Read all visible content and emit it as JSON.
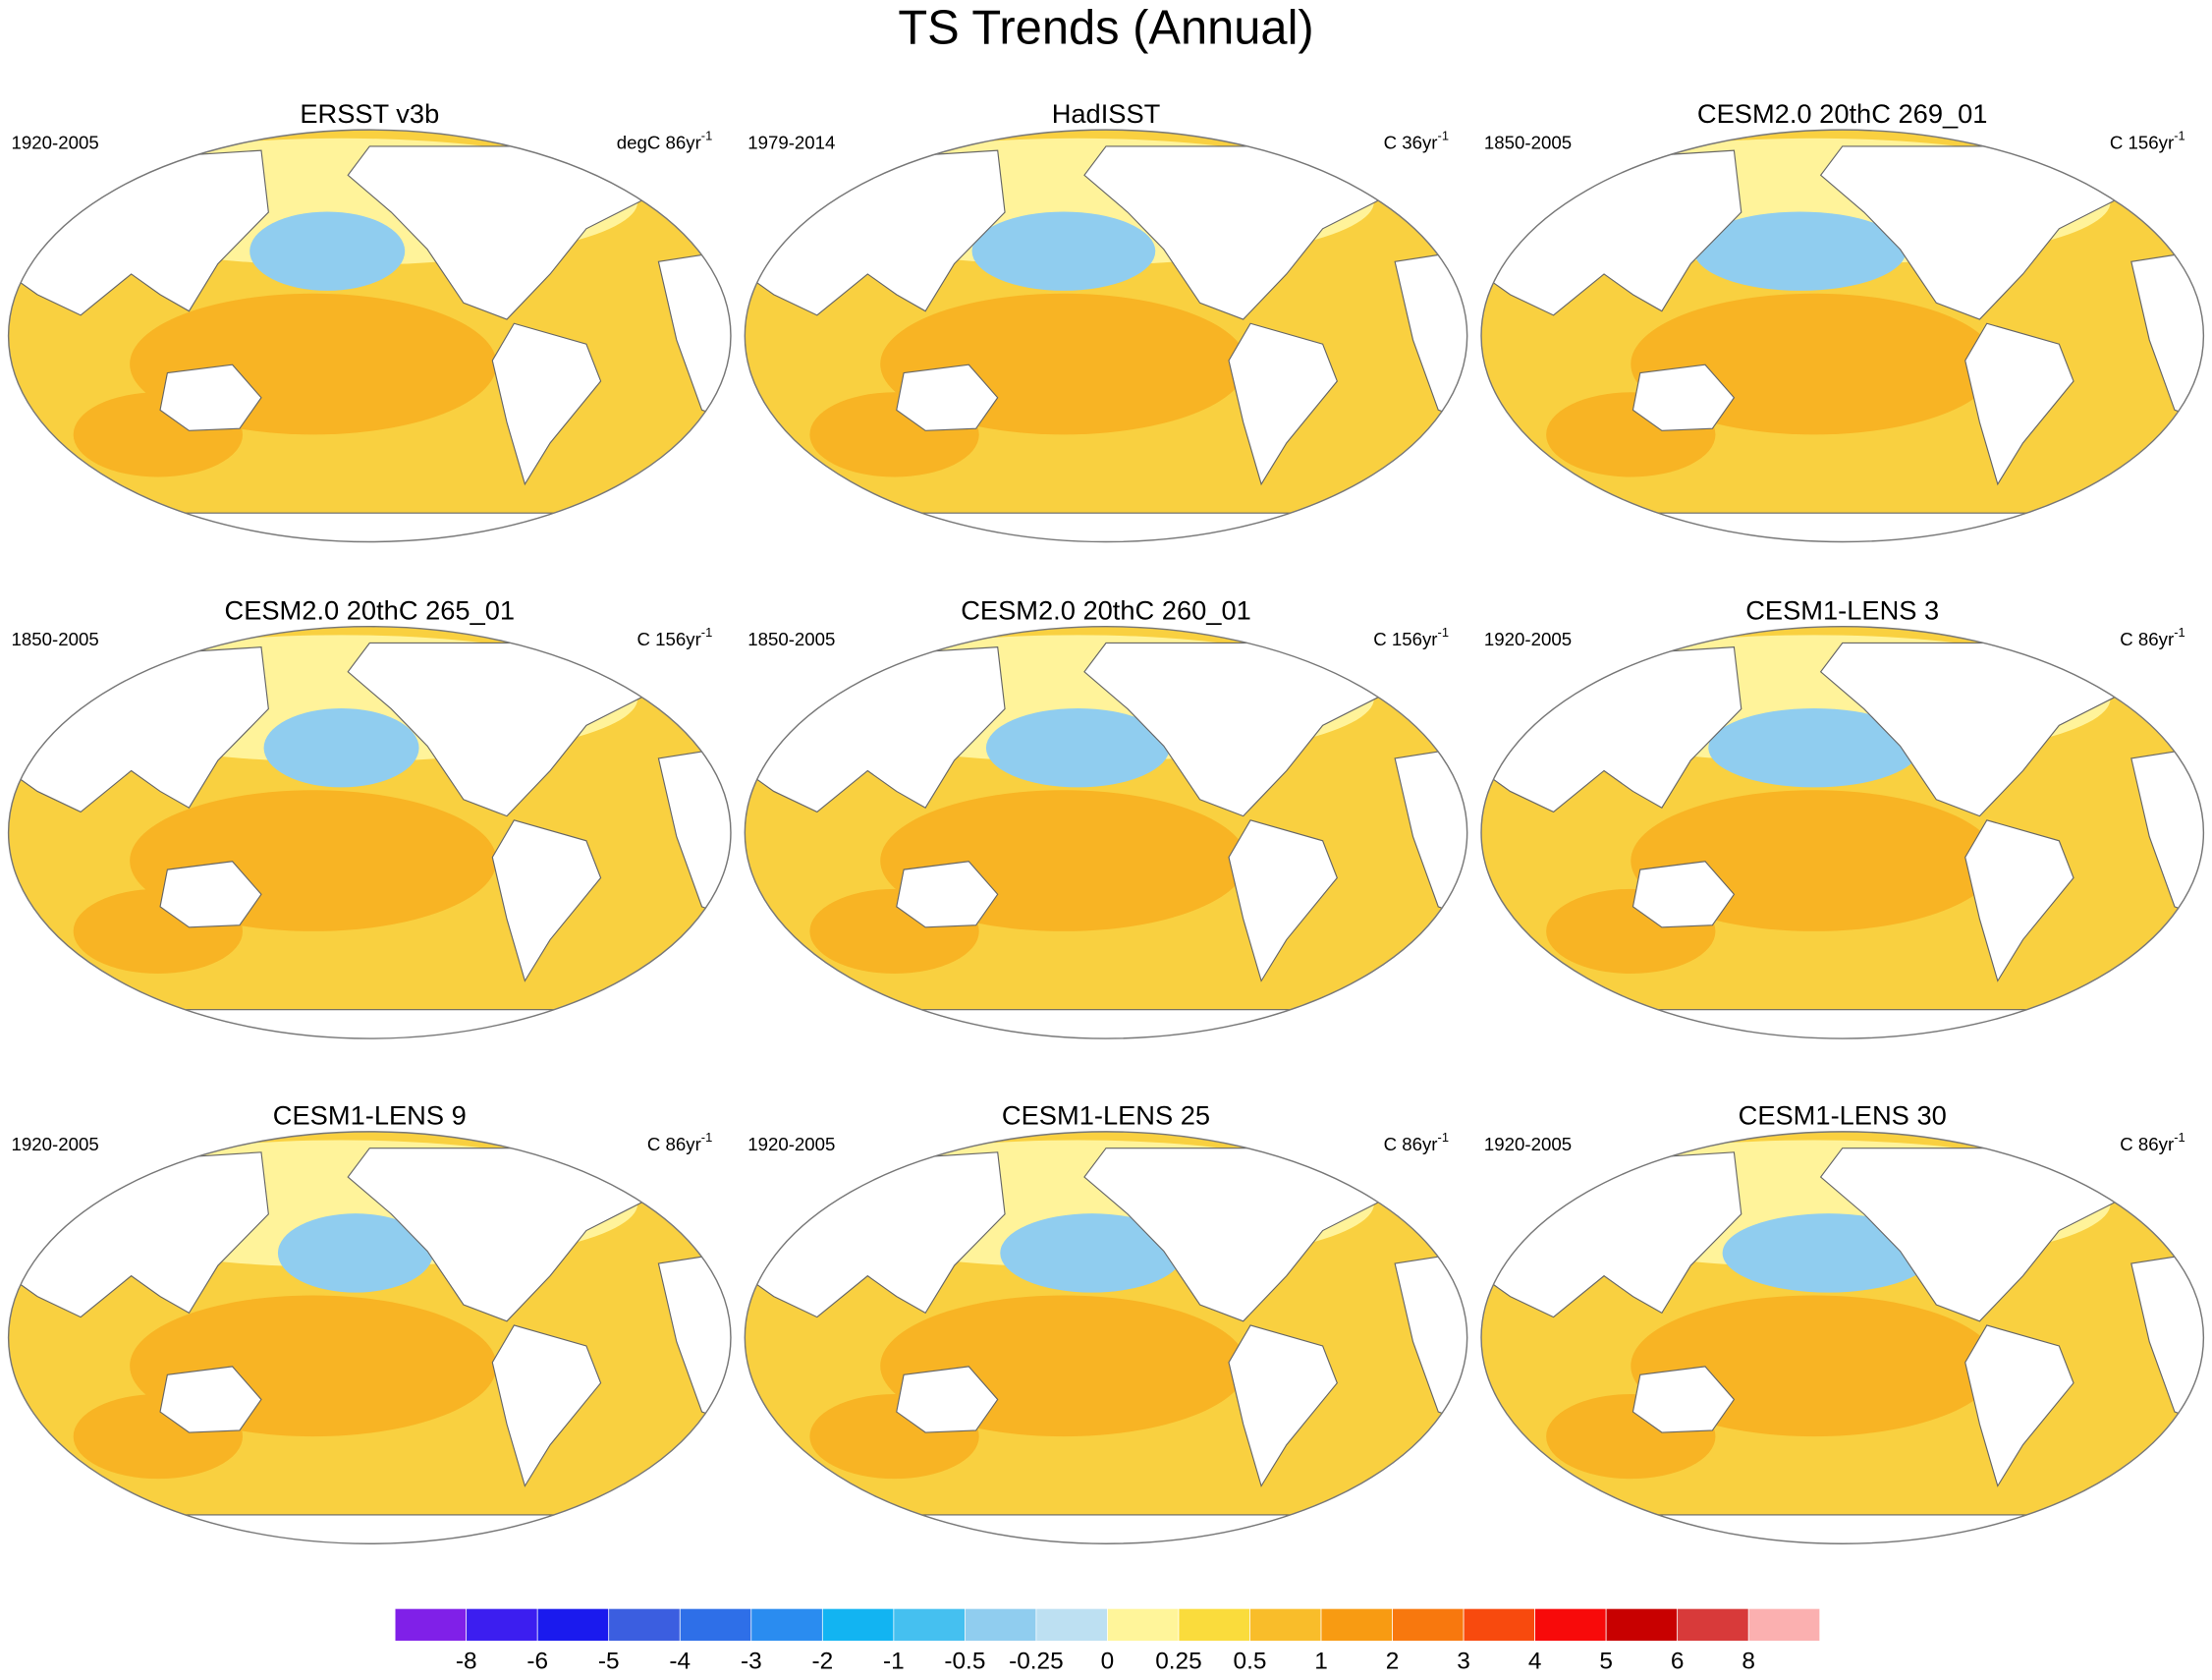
{
  "title": "TS Trends (Annual)",
  "panels": [
    {
      "title": "ERSST v3b",
      "period": "1920-2005",
      "units": "degC 86yr",
      "exponent": "-1"
    },
    {
      "title": "HadISST",
      "period": "1979-2014",
      "units": "C 36yr",
      "exponent": "-1"
    },
    {
      "title": "CESM2.0 20thC 269_01",
      "period": "1850-2005",
      "units": "C 156yr",
      "exponent": "-1"
    },
    {
      "title": "CESM2.0 20thC 265_01",
      "period": "1850-2005",
      "units": "C 156yr",
      "exponent": "-1"
    },
    {
      "title": "CESM2.0 20thC 260_01",
      "period": "1850-2005",
      "units": "C 156yr",
      "exponent": "-1"
    },
    {
      "title": "CESM1-LENS 3",
      "period": "1920-2005",
      "units": "C 86yr",
      "exponent": "-1"
    },
    {
      "title": "CESM1-LENS 9",
      "period": "1920-2005",
      "units": "C 86yr",
      "exponent": "-1"
    },
    {
      "title": "CESM1-LENS 25",
      "period": "1920-2005",
      "units": "C 86yr",
      "exponent": "-1"
    },
    {
      "title": "CESM1-LENS 30",
      "period": "1920-2005",
      "units": "C 86yr",
      "exponent": "-1"
    }
  ],
  "colorbar": {
    "colors": [
      "#8020e8",
      "#3c1ef0",
      "#1a1aee",
      "#3b5ee0",
      "#2e6fe8",
      "#2a8cf0",
      "#12b4f2",
      "#45c0f0",
      "#90cdef",
      "#bde0f2",
      "#fff59a",
      "#fadc3c",
      "#f9bd2a",
      "#f89b12",
      "#f8780e",
      "#f84a0e",
      "#f80a0a",
      "#c80000",
      "#d83a3a",
      "#fbb0b0"
    ],
    "labels": [
      -8,
      -6,
      -5,
      -4,
      -3,
      -2,
      -1,
      -0.5,
      -0.25,
      0,
      0.25,
      0.5,
      1,
      2,
      3,
      4,
      5,
      6,
      8
    ]
  }
}
